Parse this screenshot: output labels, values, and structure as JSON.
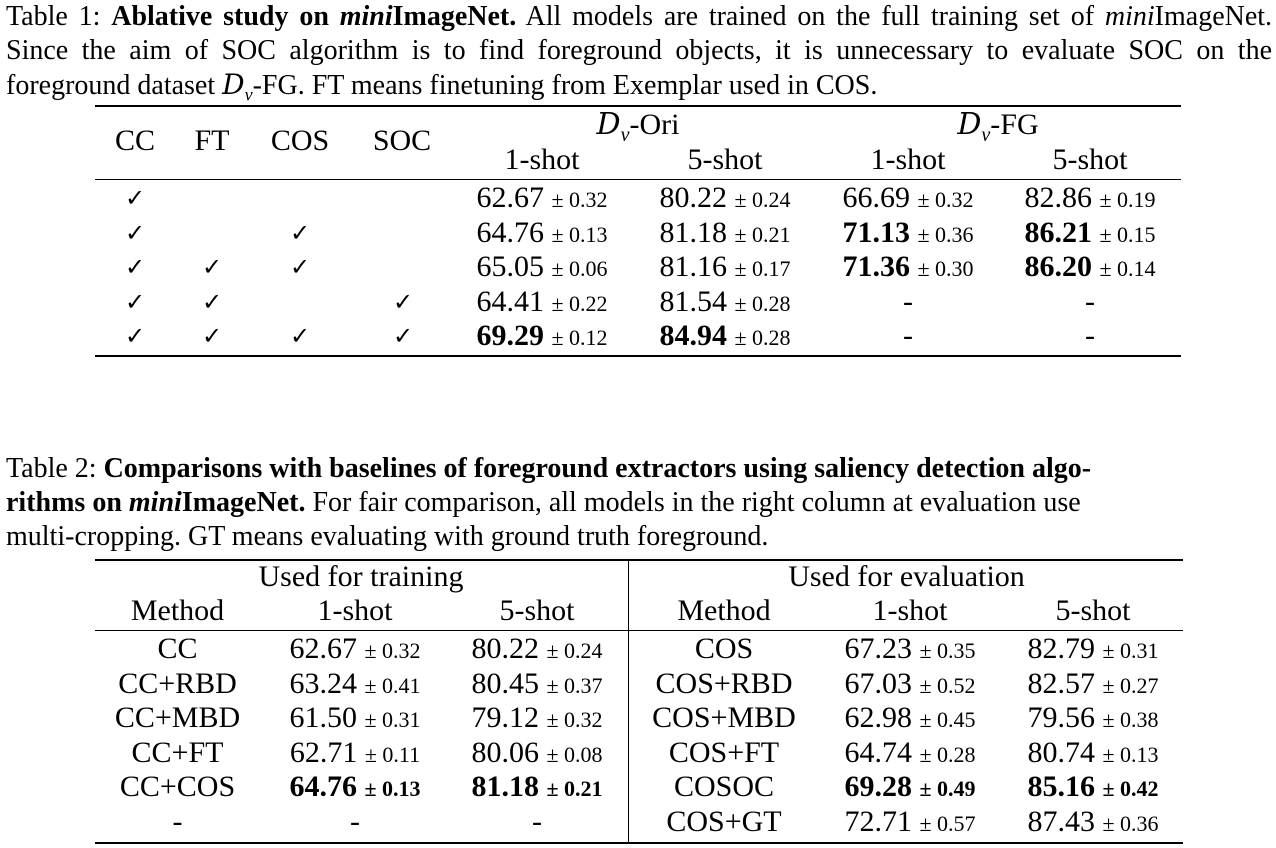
{
  "table1": {
    "caption": {
      "label": "Table 1:",
      "title_pre": "Ablative study on ",
      "title_ital": "mini",
      "title_post": "ImageNet.",
      "text1": "All models are trained on the full training set of",
      "text2_ital": "mini",
      "text2": "ImageNet. Since the aim of SOC algorithm is to find foreground objects, it is unnecessary to evaluate SOC on the foreground dataset",
      "dv": "D",
      "dv_sub": "v",
      "text3": "-FG. FT means finetuning from Exemplar used in COS."
    },
    "headers": {
      "cc": "CC",
      "ft": "FT",
      "cos": "COS",
      "soc": "SOC",
      "group_ori_sym": "D",
      "group_ori_sub": "v",
      "group_ori": "-Ori",
      "group_fg_sym": "D",
      "group_fg_sub": "v",
      "group_fg": "-FG",
      "one_shot": "1-shot",
      "five_shot": "5-shot"
    },
    "check_symbol": "✓",
    "rows": [
      {
        "cc": true,
        "ft": false,
        "cos": false,
        "soc": false,
        "ori1": "62.67",
        "ori1_pm": "± 0.32",
        "ori5": "80.22",
        "ori5_pm": "± 0.24",
        "fg1": "66.69",
        "fg1_pm": "± 0.32",
        "fg5": "82.86",
        "fg5_pm": "± 0.19"
      },
      {
        "cc": true,
        "ft": false,
        "cos": true,
        "soc": false,
        "ori1": "64.76",
        "ori1_pm": "± 0.13",
        "ori5": "81.18",
        "ori5_pm": "± 0.21",
        "fg1": "71.13",
        "fg1_pm": "± 0.36",
        "fg5": "86.21",
        "fg5_pm": "± 0.15"
      },
      {
        "cc": true,
        "ft": true,
        "cos": true,
        "soc": false,
        "ori1": "65.05",
        "ori1_pm": "± 0.06",
        "ori5": "81.16",
        "ori5_pm": "± 0.17",
        "fg1": "71.36",
        "fg1_pm": "± 0.30",
        "fg5": "86.20",
        "fg5_pm": "± 0.14"
      },
      {
        "cc": true,
        "ft": true,
        "cos": false,
        "soc": true,
        "ori1": "64.41",
        "ori1_pm": "± 0.22",
        "ori5": "81.54",
        "ori5_pm": "± 0.28",
        "fg1": "-",
        "fg1_pm": "",
        "fg5": "-",
        "fg5_pm": ""
      },
      {
        "cc": true,
        "ft": true,
        "cos": true,
        "soc": true,
        "ori1": "69.29",
        "ori1_pm": "± 0.12",
        "ori5": "84.94",
        "ori5_pm": "± 0.28",
        "fg1": "-",
        "fg1_pm": "",
        "fg5": "-",
        "fg5_pm": ""
      }
    ]
  },
  "table2": {
    "caption": {
      "label": "Table 2:",
      "title_a": "Comparisons with baselines of foreground extractors using saliency detection algo-",
      "title_b_pre": "rithms on ",
      "title_b_ital": "mini",
      "title_b_post": "ImageNet.",
      "text_a": "For fair comparison, all models in the right column at evaluation use",
      "text_b": "multi-cropping. GT means evaluating with ground truth foreground."
    },
    "headers": {
      "training": "Used for training",
      "evaluation": "Used for evaluation",
      "method": "Method",
      "one_shot": "1-shot",
      "five_shot": "5-shot"
    },
    "rows": [
      {
        "lm": "CC",
        "l1": "62.67",
        "l1_pm": "± 0.32",
        "l5": "80.22",
        "l5_pm": "± 0.24",
        "rm": "COS",
        "r1": "67.23",
        "r1_pm": "± 0.35",
        "r5": "82.79",
        "r5_pm": "± 0.31"
      },
      {
        "lm": "CC+RBD",
        "l1": "63.24",
        "l1_pm": "± 0.41",
        "l5": "80.45",
        "l5_pm": "± 0.37",
        "rm": "COS+RBD",
        "r1": "67.03",
        "r1_pm": "± 0.52",
        "r5": "82.57",
        "r5_pm": "± 0.27"
      },
      {
        "lm": "CC+MBD",
        "l1": "61.50",
        "l1_pm": "± 0.31",
        "l5": "79.12",
        "l5_pm": "± 0.32",
        "rm": "COS+MBD",
        "r1": "62.98",
        "r1_pm": "± 0.45",
        "r5": "79.56",
        "r5_pm": "± 0.38"
      },
      {
        "lm": "CC+FT",
        "l1": "62.71",
        "l1_pm": "± 0.11",
        "l5": "80.06",
        "l5_pm": "± 0.08",
        "rm": "COS+FT",
        "r1": "64.74",
        "r1_pm": "± 0.28",
        "r5": "80.74",
        "r5_pm": "± 0.13"
      },
      {
        "lm": "CC+COS",
        "l1": "64.76",
        "l1_pm": "± 0.13",
        "l5": "81.18",
        "l5_pm": "± 0.21",
        "rm": "COSOC",
        "r1": "69.28",
        "r1_pm": "± 0.49",
        "r5": "85.16",
        "r5_pm": "± 0.42"
      },
      {
        "lm": "-",
        "l1": "-",
        "l1_pm": "",
        "l5": "-",
        "l5_pm": "",
        "rm": "COS+GT",
        "r1": "72.71",
        "r1_pm": "± 0.57",
        "r5": "87.43",
        "r5_pm": "± 0.36"
      }
    ]
  }
}
